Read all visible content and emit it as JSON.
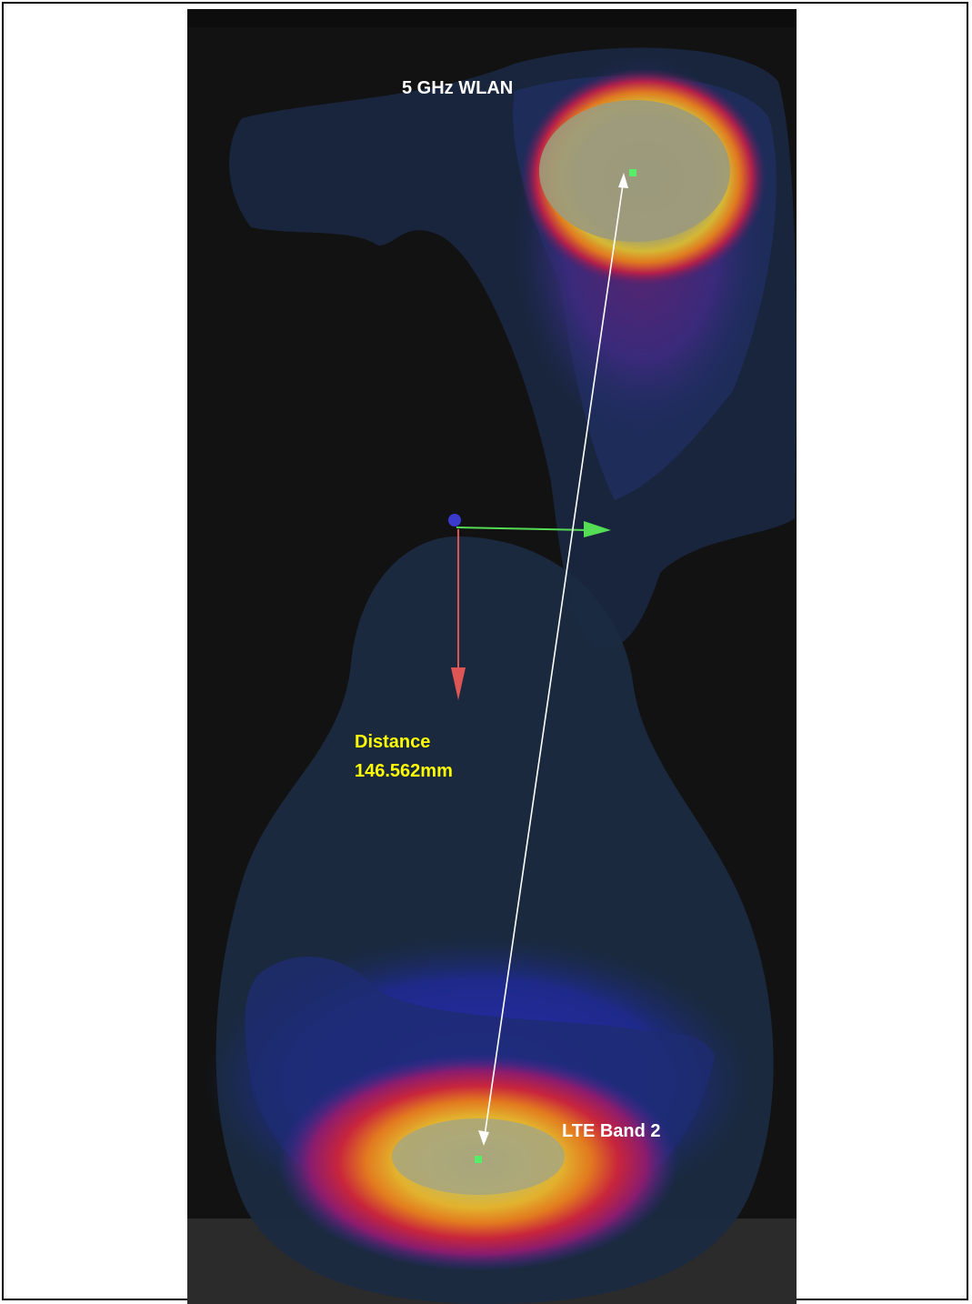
{
  "labels": {
    "top_source": "5 GHz WLAN",
    "bottom_source": "LTE Band 2",
    "distance_title": "Distance",
    "distance_value": "146.562mm"
  },
  "colors": {
    "background": "#0d0d0d",
    "phone_outline": "#1b2a40",
    "hot_core": "#9a9a72",
    "distance_text": "#ffff00",
    "label_text": "#ffffff",
    "axis_x": "#55dd55",
    "axis_y": "#dd5555"
  }
}
